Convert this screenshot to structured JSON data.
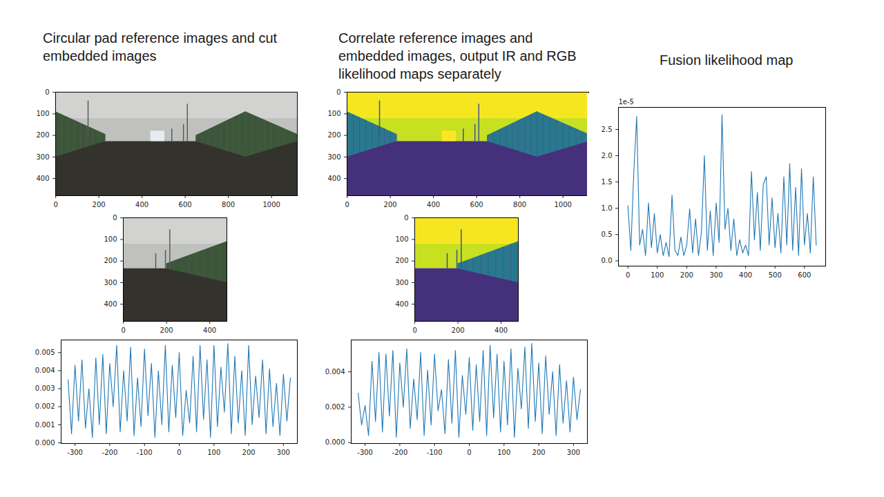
{
  "headings": [
    "Circular pad reference images and cut embedded images",
    "Correlate reference images and embedded images, output IR and RGB likelihood maps separately",
    "Fusion likelihood map"
  ],
  "chart_data": [
    {
      "type": "image",
      "xlim": [
        -0.5,
        1119.5
      ],
      "ylim": [
        479.5,
        -0.5
      ],
      "xticks": [
        0,
        200,
        400,
        600,
        800,
        1000
      ],
      "yticks": [
        0,
        100,
        200,
        300,
        400
      ]
    },
    {
      "type": "image",
      "xlim": [
        -0.5,
        479.5
      ],
      "ylim": [
        479.5,
        -0.5
      ],
      "xticks": [
        0,
        200,
        400
      ],
      "yticks": [
        0,
        100,
        200,
        300,
        400
      ]
    },
    {
      "type": "line",
      "color": "#1f77b4",
      "xlim": [
        -340,
        340
      ],
      "ylim": [
        -4e-05,
        0.0057
      ],
      "xticks": [
        -300,
        -200,
        -100,
        0,
        100,
        200,
        300
      ],
      "yticks": [
        {
          "value": 0,
          "label": "0.000"
        },
        0.001,
        0.002,
        0.003,
        0.004,
        0.005
      ],
      "x": [
        -320,
        -310,
        -300,
        -290,
        -280,
        -270,
        -260,
        -250,
        -240,
        -230,
        -220,
        -210,
        -200,
        -190,
        -180,
        -170,
        -160,
        -150,
        -140,
        -130,
        -120,
        -110,
        -100,
        -90,
        -80,
        -70,
        -60,
        -50,
        -40,
        -30,
        -20,
        -10,
        0,
        10,
        20,
        30,
        40,
        50,
        60,
        70,
        80,
        90,
        100,
        110,
        120,
        130,
        140,
        150,
        160,
        170,
        180,
        190,
        200,
        210,
        220,
        230,
        240,
        250,
        260,
        270,
        280,
        290,
        300,
        310,
        320
      ],
      "values": [
        0.0035,
        0.0005,
        0.0043,
        0.0012,
        0.0046,
        0.0008,
        0.003,
        0.0003,
        0.0047,
        0.001,
        0.0049,
        0.0005,
        0.0044,
        0.002,
        0.0054,
        0.0006,
        0.004,
        0.0012,
        0.0053,
        0.0004,
        0.0036,
        0.0009,
        0.0052,
        0.0015,
        0.0044,
        0.0003,
        0.004,
        0.001,
        0.0054,
        0.0006,
        0.0043,
        0.0014,
        0.005,
        0.0004,
        0.0029,
        0.0011,
        0.0048,
        0.0006,
        0.0054,
        0.0013,
        0.0046,
        0.0003,
        0.0054,
        0.0009,
        0.0042,
        0.0017,
        0.0055,
        0.0005,
        0.0048,
        0.0011,
        0.004,
        0.0004,
        0.0054,
        0.001,
        0.0037,
        0.0014,
        0.0046,
        0.0005,
        0.0041,
        0.0009,
        0.0033,
        0.0004,
        0.0038,
        0.0012,
        0.0036
      ]
    },
    {
      "type": "image",
      "color": "viridis",
      "xlim": [
        -0.5,
        1119.5
      ],
      "ylim": [
        479.5,
        -0.5
      ],
      "xticks": [
        0,
        200,
        400,
        600,
        800,
        1000
      ],
      "yticks": [
        0,
        100,
        200,
        300,
        400
      ]
    },
    {
      "type": "image",
      "color": "viridis",
      "xlim": [
        -0.5,
        479.5
      ],
      "ylim": [
        479.5,
        -0.5
      ],
      "xticks": [
        0,
        200,
        400
      ],
      "yticks": [
        0,
        100,
        200,
        300,
        400
      ]
    },
    {
      "type": "line",
      "color": "#1f77b4",
      "xlim": [
        -340,
        340
      ],
      "ylim": [
        -5e-05,
        0.0058
      ],
      "xticks": [
        -300,
        -200,
        -100,
        0,
        100,
        200,
        300
      ],
      "yticks": [
        {
          "value": 0,
          "label": "0.000"
        },
        0.002,
        0.004
      ],
      "x": [
        -320,
        -310,
        -300,
        -290,
        -280,
        -270,
        -260,
        -250,
        -240,
        -230,
        -220,
        -210,
        -200,
        -190,
        -180,
        -170,
        -160,
        -150,
        -140,
        -130,
        -120,
        -110,
        -100,
        -90,
        -80,
        -70,
        -60,
        -50,
        -40,
        -30,
        -20,
        -10,
        0,
        10,
        20,
        30,
        40,
        50,
        60,
        70,
        80,
        90,
        100,
        110,
        120,
        130,
        140,
        150,
        160,
        170,
        180,
        190,
        200,
        210,
        220,
        230,
        240,
        250,
        260,
        270,
        280,
        290,
        300,
        310,
        320
      ],
      "values": [
        0.0028,
        0.001,
        0.0021,
        0.0004,
        0.0046,
        0.0012,
        0.0051,
        0.0006,
        0.005,
        0.0015,
        0.0052,
        0.0003,
        0.0045,
        0.002,
        0.0053,
        0.0008,
        0.0036,
        0.0013,
        0.0051,
        0.0004,
        0.0041,
        0.001,
        0.005,
        0.0018,
        0.003,
        0.0005,
        0.0047,
        0.0011,
        0.0052,
        0.0003,
        0.0038,
        0.0016,
        0.0048,
        0.0007,
        0.0044,
        0.0012,
        0.0052,
        0.0004,
        0.0055,
        0.0014,
        0.005,
        0.0006,
        0.0046,
        0.001,
        0.0053,
        0.0003,
        0.0042,
        0.0019,
        0.0054,
        0.0008,
        0.0056,
        0.0012,
        0.0045,
        0.0005,
        0.0049,
        0.0016,
        0.004,
        0.0004,
        0.0044,
        0.0011,
        0.0035,
        0.0006,
        0.0037,
        0.0013,
        0.003
      ]
    },
    {
      "type": "line",
      "color": "#1f77b4",
      "annotation": "1e-5",
      "xlim": [
        -32,
        672
      ],
      "ylim": [
        -0.1,
        2.92
      ],
      "xticks": [
        0,
        100,
        200,
        300,
        400,
        500,
        600
      ],
      "yticks": [
        {
          "value": 0,
          "label": "0.0"
        },
        0.5,
        {
          "value": 1,
          "label": "1.0"
        },
        1.5,
        {
          "value": 2,
          "label": "2.0"
        },
        2.5
      ],
      "x": [
        0,
        10,
        20,
        30,
        40,
        50,
        60,
        70,
        80,
        90,
        100,
        110,
        120,
        130,
        140,
        150,
        160,
        170,
        180,
        190,
        200,
        210,
        220,
        230,
        240,
        250,
        260,
        270,
        280,
        290,
        300,
        310,
        320,
        330,
        340,
        350,
        360,
        370,
        380,
        390,
        400,
        410,
        420,
        430,
        440,
        450,
        460,
        470,
        480,
        490,
        500,
        510,
        520,
        530,
        540,
        550,
        560,
        570,
        580,
        590,
        600,
        610,
        620,
        630,
        640
      ],
      "values": [
        1.05,
        0.2,
        1.67,
        2.75,
        0.3,
        0.6,
        0.1,
        1.1,
        0.25,
        0.9,
        0.15,
        0.5,
        0.1,
        0.35,
        0.08,
        1.25,
        0.2,
        0.1,
        0.45,
        0.1,
        0.3,
        0.99,
        0.15,
        0.8,
        0.1,
        0.55,
        2.0,
        0.2,
        0.95,
        0.1,
        1.1,
        0.35,
        2.78,
        0.6,
        1.0,
        0.2,
        0.8,
        0.1,
        0.4,
        0.15,
        0.3,
        0.1,
        1.7,
        0.4,
        1.3,
        0.2,
        1.45,
        1.6,
        0.3,
        1.2,
        0.25,
        0.9,
        0.15,
        1.6,
        0.3,
        1.85,
        0.2,
        1.4,
        0.1,
        1.75,
        0.3,
        0.9,
        0.15,
        1.6,
        0.3
      ]
    }
  ]
}
